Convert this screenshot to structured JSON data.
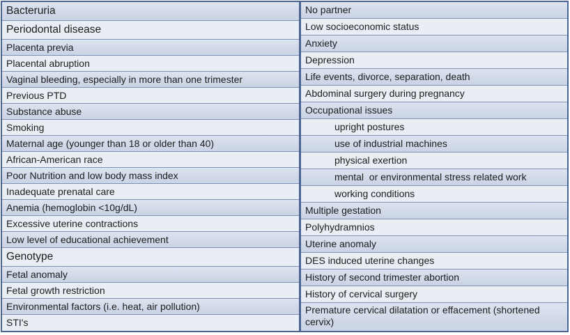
{
  "title": "Risk factors table",
  "colors": {
    "row_blue": "#ccd5e6",
    "row_blue_top": "#dde4f0",
    "row_light": "#e9edf4",
    "inner_line": "#7b90b4",
    "outer_border": "#4a6593",
    "text_color": "#1c1c1c"
  },
  "table": {
    "left_column": {
      "rows": [
        {
          "label": "Bacteruria",
          "size": "large"
        },
        {
          "label": "Periodontal disease",
          "size": "large"
        },
        {
          "label": "Placenta previa"
        },
        {
          "label": "Placental abruption"
        },
        {
          "label": "Vaginal bleeding, especially in more than one trimester"
        },
        {
          "label": "Previous PTD"
        },
        {
          "label": "Substance abuse"
        },
        {
          "label": "Smoking"
        },
        {
          "label": "Maternal age (younger than 18 or older than 40)"
        },
        {
          "label": "African-American race"
        },
        {
          "label": "Poor Nutrition and low body mass index"
        },
        {
          "label": "Inadequate prenatal care"
        },
        {
          "label": "Anemia (hemoglobin <10g/dL)"
        },
        {
          "label": "Excessive uterine contractions"
        },
        {
          "label": "Low level of educational achievement"
        },
        {
          "label": "Genotype",
          "size": "large"
        },
        {
          "label": "Fetal anomaly"
        },
        {
          "label": "Fetal growth restriction"
        },
        {
          "label": "Environmental factors (i.e. heat, air pollution)"
        },
        {
          "label": "STI's"
        }
      ]
    },
    "right_column": {
      "rows": [
        {
          "label": "No partner"
        },
        {
          "label": "Low socioeconomic status"
        },
        {
          "label": "Anxiety"
        },
        {
          "label": "Depression"
        },
        {
          "label": "Life events, divorce, separation, death"
        },
        {
          "label": "Abdominal surgery during pregnancy"
        },
        {
          "label": "Occupational issues"
        },
        {
          "label": "upright postures",
          "indent": true
        },
        {
          "label": "use of industrial machines",
          "indent": true
        },
        {
          "label": "physical exertion",
          "indent": true
        },
        {
          "label": "mental  or environmental stress related work",
          "indent": true
        },
        {
          "label": "working conditions",
          "indent": true
        },
        {
          "label": "Multiple gestation"
        },
        {
          "label": "Polyhydramnios"
        },
        {
          "label": "Uterine anomaly"
        },
        {
          "label": "DES induced uterine changes"
        },
        {
          "label": "History of second trimester abortion"
        },
        {
          "label": "History of cervical surgery"
        },
        {
          "label": "Premature cervical dilatation or effacement (shortened cervix)",
          "two_line": true
        }
      ]
    }
  }
}
